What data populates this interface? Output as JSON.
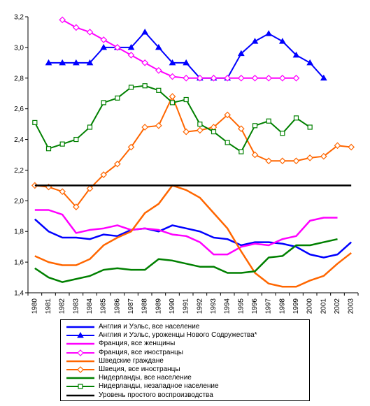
{
  "chart_data": {
    "type": "line",
    "title": "",
    "xlabel": "",
    "ylabel": "",
    "ylim": [
      1.4,
      3.2
    ],
    "yticks": [
      "1,4",
      "1,6",
      "1,8",
      "2,0",
      "2,2",
      "2,4",
      "2,6",
      "2,8",
      "3,0",
      "3,2"
    ],
    "x": [
      "1980",
      "1981",
      "1982",
      "1983",
      "1984",
      "1985",
      "1986",
      "1987",
      "1988",
      "1989",
      "1990",
      "1991",
      "1992",
      "1993",
      "1994",
      "1995",
      "1996",
      "1997",
      "1998",
      "1999",
      "2000",
      "2001",
      "2002",
      "2003"
    ],
    "grid": false,
    "legend_position": "bottom",
    "series": [
      {
        "name": "Англия и Уэльс, все население",
        "color": "#0000ff",
        "marker": "none",
        "values": [
          1.88,
          1.8,
          1.76,
          1.76,
          1.75,
          1.78,
          1.77,
          1.81,
          1.82,
          1.8,
          1.84,
          1.82,
          1.8,
          1.76,
          1.75,
          1.71,
          1.73,
          1.73,
          1.72,
          1.7,
          1.65,
          1.63,
          1.65,
          1.73
        ]
      },
      {
        "name": "Англия и Уэльс, уроженцы Нового Содружества*",
        "color": "#0000ff",
        "marker": "triangle",
        "values": [
          null,
          2.9,
          2.9,
          2.9,
          2.9,
          3.0,
          3.0,
          3.0,
          3.1,
          3.0,
          2.9,
          2.9,
          2.8,
          2.8,
          2.8,
          2.96,
          3.04,
          3.09,
          3.04,
          2.95,
          2.9,
          2.8,
          null,
          null
        ]
      },
      {
        "name": "Франция, все женщины",
        "color": "#ff00ff",
        "marker": "none",
        "values": [
          1.94,
          1.94,
          1.91,
          1.79,
          1.81,
          1.82,
          1.84,
          1.81,
          1.82,
          1.81,
          1.78,
          1.77,
          1.73,
          1.65,
          1.65,
          1.7,
          1.72,
          1.71,
          1.75,
          1.77,
          1.87,
          1.89,
          1.89,
          null
        ]
      },
      {
        "name": "Франция, все иностранцы",
        "color": "#ff00ff",
        "marker": "diamond",
        "values": [
          null,
          null,
          3.18,
          3.13,
          3.1,
          3.05,
          3.0,
          2.95,
          2.9,
          2.85,
          2.81,
          2.8,
          2.8,
          2.8,
          2.8,
          2.8,
          2.8,
          2.8,
          2.8,
          2.8,
          null,
          null,
          null,
          null
        ]
      },
      {
        "name": "Шведские граждане",
        "color": "#ff6600",
        "marker": "none",
        "values": [
          1.64,
          1.6,
          1.58,
          1.58,
          1.62,
          1.71,
          1.76,
          1.8,
          1.92,
          1.98,
          2.1,
          2.07,
          2.02,
          1.92,
          1.82,
          1.67,
          1.53,
          1.46,
          1.44,
          1.44,
          1.48,
          1.51,
          1.59,
          1.66
        ]
      },
      {
        "name": "Швеция, все иностранцы",
        "color": "#ff6600",
        "marker": "diamond",
        "values": [
          2.1,
          2.09,
          2.06,
          1.96,
          2.08,
          2.17,
          2.24,
          2.35,
          2.48,
          2.49,
          2.68,
          2.45,
          2.46,
          2.48,
          2.56,
          2.47,
          2.3,
          2.26,
          2.26,
          2.26,
          2.28,
          2.29,
          2.36,
          2.35
        ]
      },
      {
        "name": "Нидерланды, все население",
        "color": "#008000",
        "marker": "none",
        "values": [
          1.56,
          1.5,
          1.47,
          1.49,
          1.51,
          1.55,
          1.56,
          1.55,
          1.55,
          1.62,
          1.61,
          1.59,
          1.57,
          1.57,
          1.53,
          1.53,
          1.54,
          1.63,
          1.64,
          1.71,
          1.71,
          1.73,
          1.75,
          null
        ]
      },
      {
        "name": "Нидерланды, незападное население",
        "color": "#008000",
        "marker": "square",
        "values": [
          2.51,
          2.34,
          2.37,
          2.4,
          2.48,
          2.64,
          2.67,
          2.74,
          2.75,
          2.72,
          2.64,
          2.66,
          2.5,
          2.45,
          2.38,
          2.32,
          2.49,
          2.52,
          2.44,
          2.54,
          2.48,
          null,
          null,
          null
        ]
      },
      {
        "name": "Уровень простого воспроизводства",
        "color": "#000000",
        "marker": "none",
        "values": [
          2.1,
          2.1,
          2.1,
          2.1,
          2.1,
          2.1,
          2.1,
          2.1,
          2.1,
          2.1,
          2.1,
          2.1,
          2.1,
          2.1,
          2.1,
          2.1,
          2.1,
          2.1,
          2.1,
          2.1,
          2.1,
          2.1,
          2.1,
          2.1
        ]
      }
    ]
  }
}
